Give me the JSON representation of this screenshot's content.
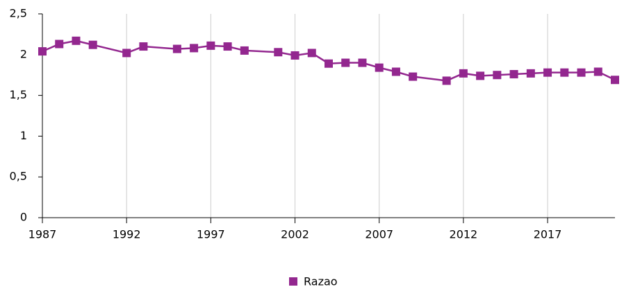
{
  "chart_data": {
    "type": "line",
    "x": [
      1987,
      1988,
      1989,
      1990,
      1992,
      1993,
      1995,
      1996,
      1997,
      1998,
      1999,
      2001,
      2002,
      2003,
      2004,
      2005,
      2006,
      2007,
      2008,
      2009,
      2011,
      2012,
      2013,
      2014,
      2015,
      2016,
      2017,
      2018,
      2019,
      2020,
      2021
    ],
    "series": [
      {
        "name": "Razao",
        "color": "#93278f",
        "values": [
          2.04,
          2.13,
          2.17,
          2.12,
          2.02,
          2.1,
          2.07,
          2.08,
          2.11,
          2.1,
          2.05,
          2.03,
          1.99,
          2.02,
          1.89,
          1.9,
          1.9,
          1.84,
          1.79,
          1.73,
          1.68,
          1.77,
          1.74,
          1.75,
          1.76,
          1.77,
          1.78,
          1.78,
          1.78,
          1.79,
          1.69
        ]
      }
    ],
    "xlim": [
      1987,
      2021
    ],
    "xticks": [
      1987,
      1992,
      1997,
      2002,
      2007,
      2012,
      2017
    ],
    "ylim": [
      0,
      2.5
    ],
    "yticks": [
      0,
      {
        "value": 0.5,
        "label": "0,5"
      },
      1,
      {
        "value": 1.5,
        "label": "1,5"
      },
      2,
      {
        "value": 2.5,
        "label": "2,5"
      }
    ],
    "grid": "x",
    "legend": "bottom"
  }
}
